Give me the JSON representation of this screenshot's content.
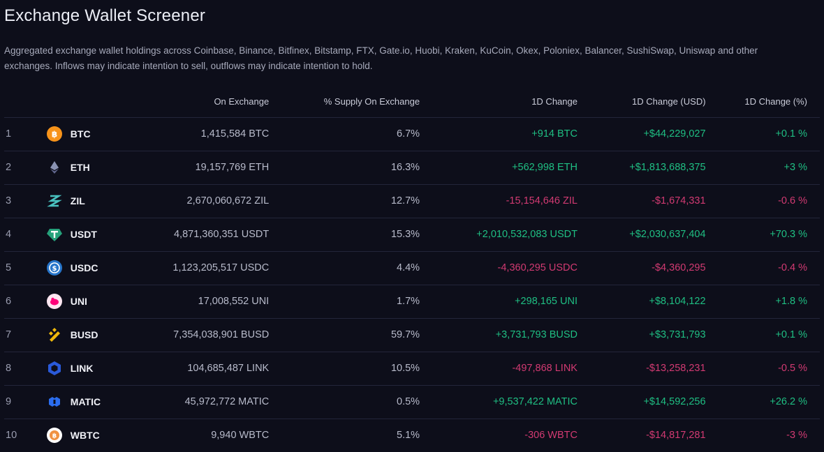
{
  "page": {
    "title": "Exchange Wallet Screener",
    "description": "Aggregated exchange wallet holdings across Coinbase, Binance, Bitfinex, Bitstamp, FTX, Gate.io, Huobi, Kraken, KuCoin, Okex, Poloniex, Balancer, SushiSwap, Uniswap and other exchanges. Inflows may indicate intention to sell, outflows may indicate intention to hold."
  },
  "table": {
    "headers": {
      "on_exchange": "On Exchange",
      "pct_supply": "% Supply On Exchange",
      "change_1d": "1D Change",
      "change_1d_usd": "1D Change (USD)",
      "change_1d_pct": "1D Change (%)"
    },
    "rows": [
      {
        "rank": "1",
        "icon": "bitcoin-icon",
        "symbol": "BTC",
        "on_exchange": "1,415,584 BTC",
        "pct_supply": "6.7%",
        "change": "+914 BTC",
        "change_usd": "+$44,229,027",
        "change_pct": "+0.1 %",
        "dir": "pos"
      },
      {
        "rank": "2",
        "icon": "ethereum-icon",
        "symbol": "ETH",
        "on_exchange": "19,157,769 ETH",
        "pct_supply": "16.3%",
        "change": "+562,998 ETH",
        "change_usd": "+$1,813,688,375",
        "change_pct": "+3 %",
        "dir": "pos"
      },
      {
        "rank": "3",
        "icon": "zilliqa-icon",
        "symbol": "ZIL",
        "on_exchange": "2,670,060,672 ZIL",
        "pct_supply": "12.7%",
        "change": "-15,154,646 ZIL",
        "change_usd": "-$1,674,331",
        "change_pct": "-0.6 %",
        "dir": "neg"
      },
      {
        "rank": "4",
        "icon": "tether-icon",
        "symbol": "USDT",
        "on_exchange": "4,871,360,351 USDT",
        "pct_supply": "15.3%",
        "change": "+2,010,532,083 USDT",
        "change_usd": "+$2,030,637,404",
        "change_pct": "+70.3 %",
        "dir": "pos"
      },
      {
        "rank": "5",
        "icon": "usdc-icon",
        "symbol": "USDC",
        "on_exchange": "1,123,205,517 USDC",
        "pct_supply": "4.4%",
        "change": "-4,360,295 USDC",
        "change_usd": "-$4,360,295",
        "change_pct": "-0.4 %",
        "dir": "neg"
      },
      {
        "rank": "6",
        "icon": "uniswap-icon",
        "symbol": "UNI",
        "on_exchange": "17,008,552 UNI",
        "pct_supply": "1.7%",
        "change": "+298,165 UNI",
        "change_usd": "+$8,104,122",
        "change_pct": "+1.8 %",
        "dir": "pos"
      },
      {
        "rank": "7",
        "icon": "busd-icon",
        "symbol": "BUSD",
        "on_exchange": "7,354,038,901 BUSD",
        "pct_supply": "59.7%",
        "change": "+3,731,793 BUSD",
        "change_usd": "+$3,731,793",
        "change_pct": "+0.1 %",
        "dir": "pos"
      },
      {
        "rank": "8",
        "icon": "chainlink-icon",
        "symbol": "LINK",
        "on_exchange": "104,685,487 LINK",
        "pct_supply": "10.5%",
        "change": "-497,868 LINK",
        "change_usd": "-$13,258,231",
        "change_pct": "-0.5 %",
        "dir": "neg"
      },
      {
        "rank": "9",
        "icon": "polygon-icon",
        "symbol": "MATIC",
        "on_exchange": "45,972,772 MATIC",
        "pct_supply": "0.5%",
        "change": "+9,537,422 MATIC",
        "change_usd": "+$14,592,256",
        "change_pct": "+26.2 %",
        "dir": "pos"
      },
      {
        "rank": "10",
        "icon": "wbtc-icon",
        "symbol": "WBTC",
        "on_exchange": "9,940 WBTC",
        "pct_supply": "5.1%",
        "change": "-306 WBTC",
        "change_usd": "-$14,817,281",
        "change_pct": "-3 %",
        "dir": "neg"
      }
    ]
  },
  "colors": {
    "background": "#0d0e1a",
    "positive": "#1fbf83",
    "negative": "#d23a72",
    "divider": "#23253a"
  }
}
